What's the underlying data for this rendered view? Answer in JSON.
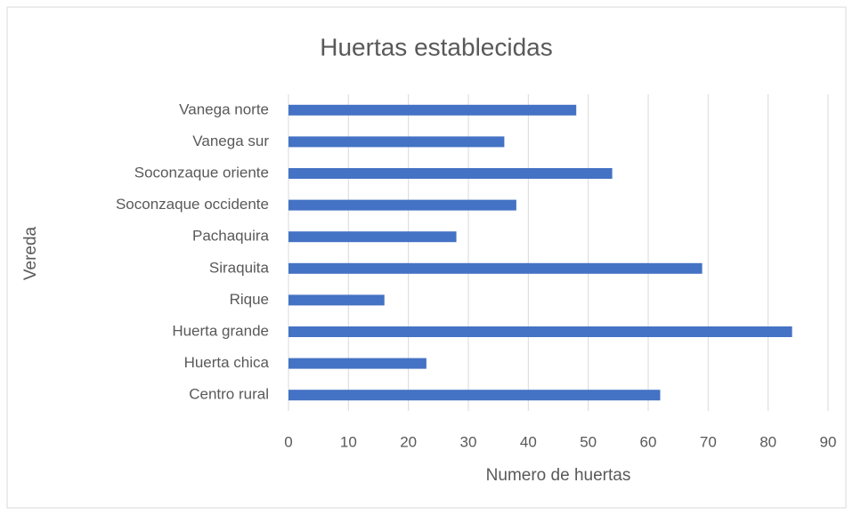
{
  "chart_data": {
    "type": "barh",
    "title": "Huertas establecidas",
    "xlabel": "Numero de huertas",
    "ylabel": "Vereda",
    "categories": [
      "Vanega norte",
      "Vanega sur",
      "Soconzaque oriente",
      "Soconzaque occidente",
      "Pachaquira",
      "Siraquita",
      "Rique",
      "Huerta grande",
      "Huerta chica",
      "Centro rural"
    ],
    "values": [
      48,
      36,
      54,
      38,
      28,
      69,
      16,
      84,
      23,
      62
    ],
    "color": "#4472c4",
    "xlim": [
      0,
      90
    ],
    "xticks": [
      0,
      10,
      20,
      30,
      40,
      50,
      60,
      70,
      80,
      90
    ],
    "grid": true
  }
}
